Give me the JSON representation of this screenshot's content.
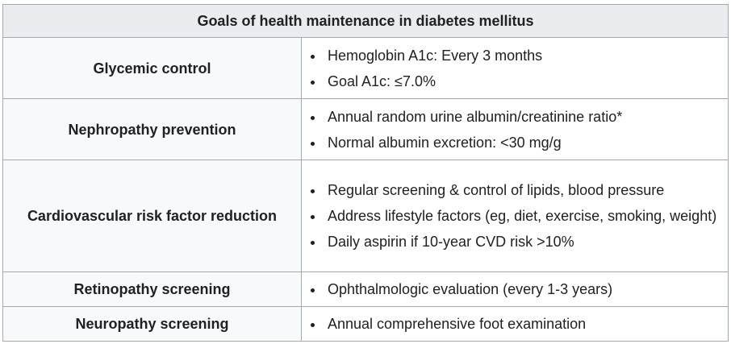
{
  "table": {
    "title": "Goals of health maintenance in diabetes mellitus",
    "rows": [
      {
        "label": "Glycemic control",
        "items": [
          "Hemoglobin A1c: Every 3 months",
          "Goal A1c: ≤7.0%"
        ]
      },
      {
        "label": "Nephropathy prevention",
        "items": [
          "Annual random urine albumin/creatinine ratio*",
          "Normal albumin excretion: <30 mg/g"
        ]
      },
      {
        "label": "Cardiovascular risk factor reduction",
        "items": [
          "Regular screening & control of lipids, blood pressure",
          "Address lifestyle factors (eg, diet, exercise, smoking, weight)",
          "Daily aspirin if 10-year CVD risk >10%"
        ]
      },
      {
        "label": "Retinopathy screening",
        "items": [
          "Ophthalmologic evaluation (every 1-3 years)"
        ]
      },
      {
        "label": "Neuropathy screening",
        "items": [
          "Annual comprehensive foot examination"
        ]
      }
    ]
  }
}
